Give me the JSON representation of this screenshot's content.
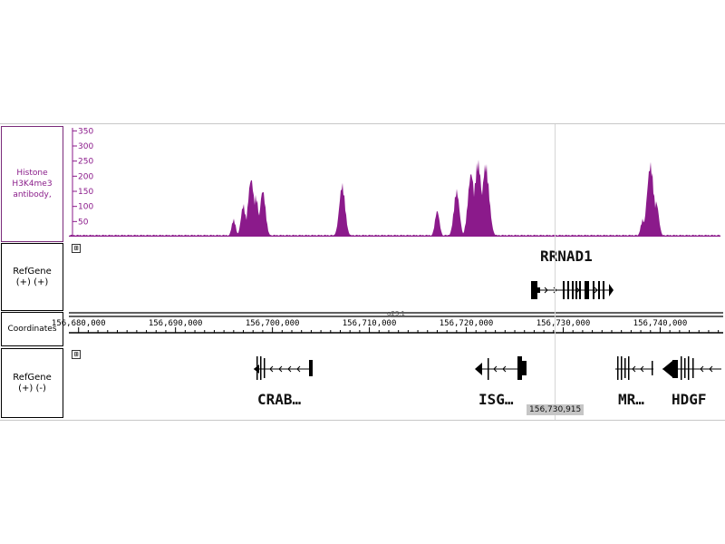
{
  "tracks": {
    "histone": {
      "label_lines": [
        "Histone",
        "H3K4me3",
        "antibody,"
      ],
      "color": "#8b1a8b",
      "y_ticks": [
        "350",
        "300",
        "250",
        "200",
        "150",
        "100",
        "50"
      ],
      "y_tick_values": [
        350,
        300,
        250,
        200,
        150,
        100,
        50
      ],
      "ymax": 360
    },
    "refgene_plus": {
      "label_lines": [
        "RefGene",
        "(+) (+)"
      ],
      "gene": "RRNAD1",
      "expand_glyph": "⊞"
    },
    "coordinates": {
      "label": "Coordinates",
      "band": "q23.1",
      "tick_labels": [
        "156,680,000",
        "156,690,000",
        "156,700,000",
        "156,710,000",
        "156,720,000",
        "156,730,000",
        "156,740,000"
      ]
    },
    "refgene_minus": {
      "label_lines": [
        "RefGene",
        "(+) (-)"
      ],
      "expand_glyph": "⊞",
      "genes": [
        "CRAB…",
        "ISG…",
        "MR…",
        "HDGF"
      ]
    }
  },
  "cursor": {
    "position_label": "156,730,915"
  },
  "signal_peaks": [
    {
      "start": 156694500,
      "end": 156699500,
      "peaks": [
        [
          156696000,
          60
        ],
        [
          156697000,
          110
        ],
        [
          156697800,
          200
        ],
        [
          156698300,
          140
        ],
        [
          156699000,
          160
        ]
      ]
    },
    {
      "start": 156706000,
      "end": 156708200,
      "peaks": [
        [
          156707200,
          180
        ]
      ]
    },
    {
      "start": 156714500,
      "end": 156723000,
      "peaks": [
        [
          156717000,
          90
        ],
        [
          156719000,
          160
        ],
        [
          156720500,
          220
        ],
        [
          156721200,
          260
        ],
        [
          156722000,
          250
        ]
      ]
    },
    {
      "start": 156737000,
      "end": 156741500,
      "peaks": [
        [
          156738200,
          60
        ],
        [
          156739000,
          250
        ],
        [
          156739600,
          120
        ]
      ]
    }
  ],
  "genome_range": {
    "start": 156679000,
    "end": 156746500
  }
}
